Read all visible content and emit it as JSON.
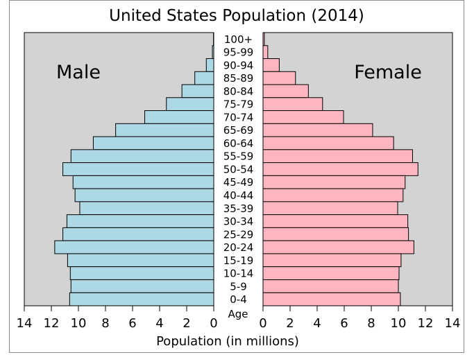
{
  "chart_data": {
    "type": "bar",
    "orientation": "horizontal",
    "layout": "population-pyramid",
    "title": "United States Population (2014)",
    "xlabel": "Population (in millions)",
    "category_axis_label": "Age",
    "xlim": [
      0,
      14
    ],
    "x_ticks": [
      14,
      12,
      10,
      8,
      6,
      4,
      2,
      0
    ],
    "x_ticks_right": [
      0,
      2,
      4,
      6,
      8,
      10,
      12,
      14
    ],
    "categories": [
      "100+",
      "95-99",
      "90-94",
      "85-89",
      "80-84",
      "75-79",
      "70-74",
      "65-69",
      "60-64",
      "55-59",
      "50-54",
      "45-49",
      "40-44",
      "35-39",
      "30-34",
      "25-29",
      "20-24",
      "15-19",
      "10-14",
      "5-9",
      "0-4"
    ],
    "series": [
      {
        "name": "Male",
        "color": "#add8e6",
        "values": [
          0.02,
          0.1,
          0.55,
          1.4,
          2.35,
          3.5,
          5.1,
          7.25,
          8.9,
          10.55,
          11.15,
          10.4,
          10.25,
          9.9,
          10.85,
          11.15,
          11.75,
          10.8,
          10.6,
          10.55,
          10.65
        ]
      },
      {
        "name": "Female",
        "color": "#ffb6c1",
        "values": [
          0.1,
          0.35,
          1.2,
          2.4,
          3.35,
          4.4,
          5.95,
          8.1,
          9.65,
          11.05,
          11.45,
          10.5,
          10.35,
          9.95,
          10.7,
          10.75,
          11.15,
          10.2,
          10.05,
          10.0,
          10.15
        ]
      }
    ],
    "panel_color": "#d3d3d3"
  }
}
